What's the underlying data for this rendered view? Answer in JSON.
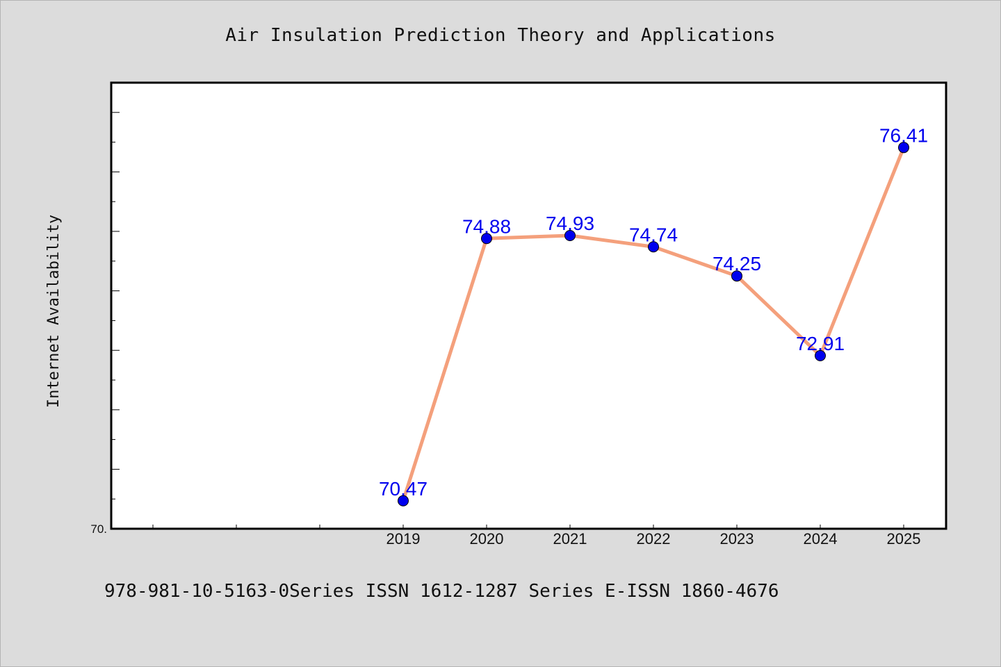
{
  "chart_data": {
    "type": "line",
    "title": "Air Insulation Prediction Theory and Applications",
    "xlabel": "",
    "ylabel": "Internet Availability",
    "categories": [
      "2019",
      "2020",
      "2021",
      "2022",
      "2023",
      "2024",
      "2025"
    ],
    "series": [
      {
        "values": [
          70.47,
          74.88,
          74.93,
          74.74,
          74.25,
          72.91,
          76.41
        ]
      }
    ],
    "ylim": [
      70.0,
      77.5
    ],
    "y_tick_labels": [
      "70."
    ],
    "grid": false,
    "legend": "none",
    "data_labels": true,
    "colors": {
      "line": "#f4a07c",
      "marker": "#0000ee",
      "data_label": "#0000ee",
      "plot_background": "#ffffff",
      "figure_background": "#dcdcdc"
    }
  },
  "footer_note": "978-981-10-5163-0Series ISSN 1612-1287 Series E-ISSN 1860-4676"
}
